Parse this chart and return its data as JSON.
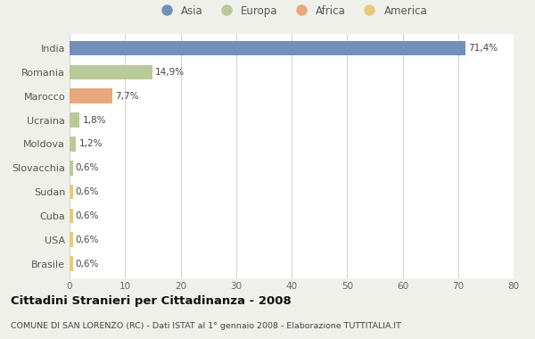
{
  "categories": [
    "India",
    "Romania",
    "Marocco",
    "Ucraina",
    "Moldova",
    "Slovacchia",
    "Sudan",
    "Cuba",
    "USA",
    "Brasile"
  ],
  "values": [
    71.4,
    14.9,
    7.7,
    1.8,
    1.2,
    0.6,
    0.6,
    0.6,
    0.6,
    0.6
  ],
  "labels": [
    "71,4%",
    "14,9%",
    "7,7%",
    "1,8%",
    "1,2%",
    "0,6%",
    "0,6%",
    "0,6%",
    "0,6%",
    "0,6%"
  ],
  "colors": [
    "#7191bb",
    "#b8ca96",
    "#e8a87c",
    "#b8ca96",
    "#b8ca96",
    "#b8ca96",
    "#e8c97c",
    "#e8c97c",
    "#e8c97c",
    "#e8c97c"
  ],
  "legend_labels": [
    "Asia",
    "Europa",
    "Africa",
    "America"
  ],
  "legend_colors": [
    "#7191bb",
    "#b8ca96",
    "#e8a87c",
    "#e8c97c"
  ],
  "title": "Cittadini Stranieri per Cittadinanza - 2008",
  "subtitle": "COMUNE DI SAN LORENZO (RC) - Dati ISTAT al 1° gennaio 2008 - Elaborazione TUTTITALIA.IT",
  "xlim": [
    0,
    80
  ],
  "xticks": [
    0,
    10,
    20,
    30,
    40,
    50,
    60,
    70,
    80
  ],
  "background_color": "#f0f0eb",
  "bar_background": "#ffffff",
  "grid_color": "#d0d0d0"
}
